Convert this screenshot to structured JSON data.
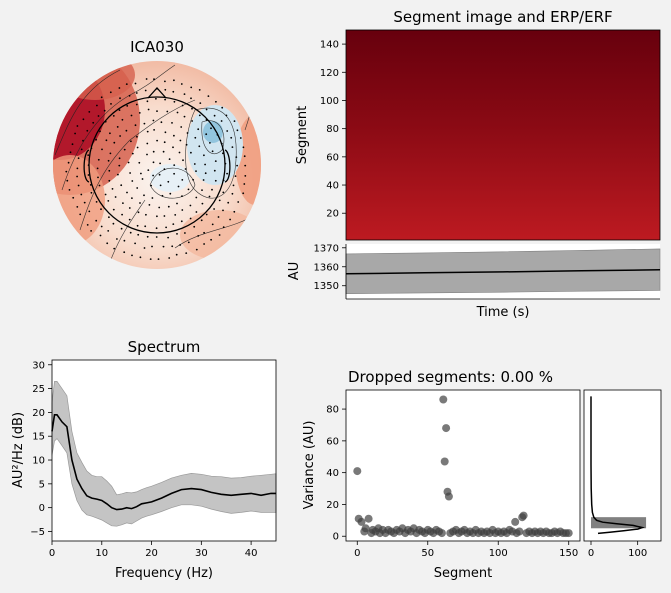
{
  "colors": {
    "figure_bg": "#f2f2f2",
    "topo_red": "#b2182b",
    "topo_blue": "#92c5de",
    "image_dark": "#67000d",
    "image_light": "#bf1a21",
    "erp_band": "#a8a8a8",
    "spectrum_band": "#c4c4c4",
    "line": "#000000",
    "scatter": "#404040"
  },
  "topomap": {
    "title": "ICA030"
  },
  "image_panel": {
    "title": "Segment image and ERP/ERF",
    "ylabel": "Segment",
    "yticks": [
      "20",
      "40",
      "60",
      "80",
      "100",
      "120",
      "140"
    ]
  },
  "erp_panel": {
    "ylabel": "AU",
    "xlabel": "Time (s)",
    "yticks": [
      "1350",
      "1360",
      "1370"
    ]
  },
  "spectrum_panel": {
    "title": "Spectrum",
    "xlabel": "Frequency (Hz)",
    "ylabel": "AU²/Hz (dB)",
    "xticks": [
      "0",
      "10",
      "20",
      "30",
      "40"
    ],
    "yticks": [
      "−5",
      "0",
      "5",
      "10",
      "15",
      "20",
      "25",
      "30"
    ]
  },
  "dropped_panel": {
    "title": "Dropped segments: 0.00 %",
    "xlabel": "Segment",
    "ylabel": "Variance (AU)",
    "xticks": [
      "0",
      "50",
      "100",
      "150"
    ],
    "yticks": [
      "0",
      "20",
      "40",
      "60",
      "80"
    ],
    "hist_xticks": [
      "0",
      "100"
    ]
  },
  "chart_data": [
    {
      "type": "heatmap",
      "title": "Segment image and ERP/ERF",
      "ylabel": "Segment",
      "ylim": [
        1,
        150
      ],
      "yticks": [
        20,
        40,
        60,
        80,
        100,
        120,
        140
      ],
      "note_values": "rows darken monotonically from segment 1 to 150"
    },
    {
      "type": "line",
      "xlabel": "Time (s)",
      "ylabel": "AU",
      "ylim": [
        1343,
        1372
      ],
      "yticks": [
        1350,
        1360,
        1370
      ],
      "x": [
        0,
        0.25,
        0.5,
        0.75,
        1.0
      ],
      "series": [
        {
          "values": [
            1356.3,
            1356.8,
            1357.3,
            1357.9,
            1358.4
          ]
        }
      ],
      "band_upper": [
        1366.8,
        1367.3,
        1367.9,
        1368.6,
        1369.4
      ],
      "band_lower": [
        1345.8,
        1346.2,
        1346.6,
        1347.1,
        1347.5
      ]
    },
    {
      "type": "line",
      "title": "Spectrum",
      "xlabel": "Frequency (Hz)",
      "ylabel": "AU²/Hz (dB)",
      "xlim": [
        0,
        45
      ],
      "ylim": [
        -7,
        31
      ],
      "xticks": [
        0,
        10,
        20,
        30,
        40
      ],
      "yticks": [
        -5,
        0,
        5,
        10,
        15,
        20,
        25,
        30
      ],
      "x": [
        0,
        0.5,
        1,
        2,
        3,
        4,
        5,
        6,
        7,
        8,
        9,
        10,
        11,
        12,
        13,
        14,
        15,
        16,
        17,
        18,
        19,
        20,
        22,
        24,
        26,
        28,
        30,
        32,
        34,
        36,
        38,
        40,
        42,
        44,
        45
      ],
      "series": [
        {
          "values": [
            16,
            19.5,
            19.5,
            18,
            17,
            10,
            6,
            4,
            2.5,
            2,
            1.8,
            1.5,
            0.8,
            0,
            -0.4,
            -0.3,
            0,
            -0.2,
            0.2,
            0.8,
            1,
            1.2,
            2,
            3,
            3.8,
            4,
            3.8,
            3.2,
            2.8,
            2.6,
            2.8,
            3,
            2.6,
            3,
            3
          ]
        }
      ],
      "band_upper": [
        22,
        26.5,
        26.5,
        25,
        23.5,
        16,
        11.5,
        9.5,
        7.7,
        6.8,
        6.5,
        6.5,
        5.6,
        4.5,
        2.7,
        2.9,
        3.2,
        3.1,
        3.3,
        3.8,
        4.2,
        4.5,
        5.3,
        6.2,
        6.8,
        7.2,
        7,
        6.6,
        6.5,
        6.2,
        6.3,
        6.6,
        6.8,
        7,
        7.1
      ],
      "band_lower": [
        11,
        14,
        14.5,
        13,
        11.5,
        5,
        1.5,
        -0.5,
        -1.5,
        -1.8,
        -2.2,
        -2.6,
        -3.2,
        -3.8,
        -3.9,
        -3.6,
        -3.2,
        -3.4,
        -2.8,
        -2.2,
        -1.8,
        -1.5,
        -0.8,
        0,
        0.6,
        0.6,
        0.3,
        -0.3,
        -0.8,
        -1.2,
        -1,
        -0.7,
        -1,
        -1,
        -1
      ]
    },
    {
      "type": "scatter",
      "title": "Dropped segments: 0.00 %",
      "xlabel": "Segment",
      "ylabel": "Variance (AU)",
      "xlim": [
        -8,
        158
      ],
      "ylim": [
        -3,
        92
      ],
      "xticks": [
        0,
        50,
        100,
        150
      ],
      "yticks": [
        0,
        20,
        40,
        60,
        80
      ],
      "points": [
        [
          0,
          41
        ],
        [
          1,
          11
        ],
        [
          3,
          9
        ],
        [
          5,
          3
        ],
        [
          6,
          5
        ],
        [
          8,
          11
        ],
        [
          10,
          2
        ],
        [
          11,
          4
        ],
        [
          13,
          3
        ],
        [
          15,
          5
        ],
        [
          16,
          2
        ],
        [
          18,
          4
        ],
        [
          20,
          2
        ],
        [
          22,
          4
        ],
        [
          24,
          3
        ],
        [
          26,
          2
        ],
        [
          28,
          4
        ],
        [
          30,
          3
        ],
        [
          32,
          5
        ],
        [
          34,
          2
        ],
        [
          36,
          4
        ],
        [
          38,
          3
        ],
        [
          40,
          5
        ],
        [
          42,
          2
        ],
        [
          44,
          4
        ],
        [
          46,
          3
        ],
        [
          48,
          2
        ],
        [
          50,
          4
        ],
        [
          52,
          3
        ],
        [
          54,
          2
        ],
        [
          56,
          4
        ],
        [
          58,
          3
        ],
        [
          60,
          2
        ],
        [
          61,
          86
        ],
        [
          62,
          47
        ],
        [
          63,
          68
        ],
        [
          64,
          28
        ],
        [
          65,
          25
        ],
        [
          66,
          2
        ],
        [
          68,
          3
        ],
        [
          70,
          4
        ],
        [
          72,
          2
        ],
        [
          74,
          3
        ],
        [
          76,
          4
        ],
        [
          78,
          2
        ],
        [
          80,
          3
        ],
        [
          82,
          2
        ],
        [
          84,
          4
        ],
        [
          86,
          2
        ],
        [
          88,
          3
        ],
        [
          90,
          2
        ],
        [
          92,
          3
        ],
        [
          94,
          2
        ],
        [
          96,
          4
        ],
        [
          98,
          2
        ],
        [
          100,
          3
        ],
        [
          102,
          2
        ],
        [
          104,
          3
        ],
        [
          106,
          2
        ],
        [
          108,
          4
        ],
        [
          110,
          3
        ],
        [
          112,
          9
        ],
        [
          113,
          2
        ],
        [
          115,
          3
        ],
        [
          117,
          12
        ],
        [
          118,
          13
        ],
        [
          120,
          2
        ],
        [
          122,
          3
        ],
        [
          124,
          2
        ],
        [
          126,
          3
        ],
        [
          128,
          2
        ],
        [
          130,
          3
        ],
        [
          132,
          2
        ],
        [
          134,
          3
        ],
        [
          136,
          2
        ],
        [
          138,
          2
        ],
        [
          140,
          3
        ],
        [
          142,
          2
        ],
        [
          144,
          3
        ],
        [
          146,
          2
        ],
        [
          148,
          2
        ],
        [
          150,
          2
        ]
      ]
    },
    {
      "type": "line",
      "xlim": [
        -15,
        150
      ],
      "ylim": [
        -3,
        92
      ],
      "xticks": [
        0,
        100
      ],
      "hist_bins": [
        {
          "y0": 5,
          "y1": 12,
          "count": 118
        }
      ],
      "density": [
        [
          15,
          1.8
        ],
        [
          40,
          2.5
        ],
        [
          70,
          3.5
        ],
        [
          100,
          4.5
        ],
        [
          110,
          5.5
        ],
        [
          90,
          6.8
        ],
        [
          55,
          7.8
        ],
        [
          25,
          8.8
        ],
        [
          12,
          10
        ],
        [
          6,
          12
        ],
        [
          3,
          15
        ],
        [
          1.5,
          20
        ],
        [
          0.5,
          30
        ],
        [
          0,
          45
        ],
        [
          0,
          60
        ],
        [
          0,
          75
        ],
        [
          0,
          88
        ]
      ]
    }
  ]
}
